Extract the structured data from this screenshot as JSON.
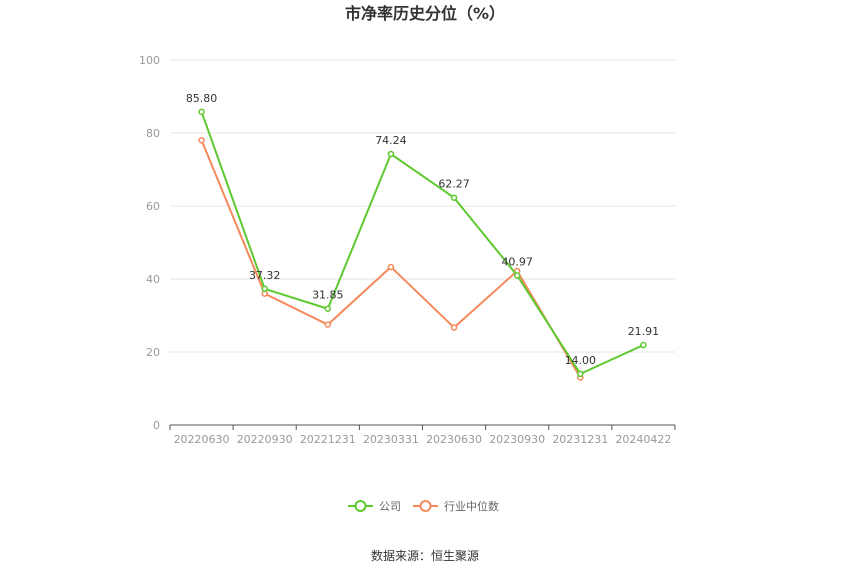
{
  "chart_data": {
    "type": "line",
    "title": "市净率历史分位（%）",
    "categories": [
      "20220630",
      "20220930",
      "20221231",
      "20230331",
      "20230630",
      "20230930",
      "20231231",
      "20240422"
    ],
    "ylim": [
      0,
      100
    ],
    "yticks": [
      0,
      20,
      40,
      60,
      80,
      100
    ],
    "grid": true,
    "legend_position": "bottom",
    "series": [
      {
        "name": "公司",
        "color": "#5ec92f",
        "values": [
          85.8,
          37.32,
          31.85,
          74.24,
          62.27,
          40.97,
          14.0,
          21.91
        ],
        "labels": [
          "85.80",
          "37.32",
          "31.85",
          "74.24",
          "62.27",
          "40.97",
          "14.00",
          "21.91"
        ]
      },
      {
        "name": "行业中位数",
        "color": "#f5895b",
        "values": [
          78.0,
          36.0,
          27.5,
          43.3,
          26.7,
          42.2,
          13.0,
          null
        ]
      }
    ]
  },
  "source": "数据来源：恒生聚源"
}
